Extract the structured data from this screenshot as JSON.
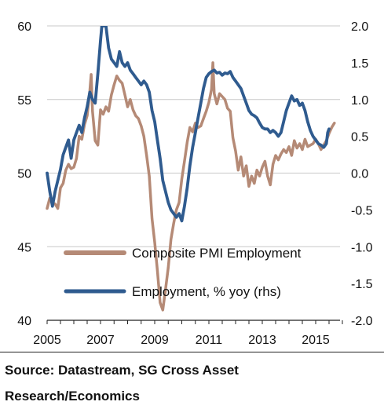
{
  "chart_data": {
    "type": "line",
    "title": "",
    "xlabel": "",
    "ylabel": "",
    "x_ticks": [
      "2005",
      "2007",
      "2009",
      "2011",
      "2013",
      "2015"
    ],
    "x_range": [
      2005.0,
      2016.0
    ],
    "y_left_ticks": [
      "40",
      "45",
      "50",
      "55",
      "60"
    ],
    "y_left_range": [
      40,
      60
    ],
    "y_right_ticks": [
      "-2.0",
      "-1.5",
      "-1.0",
      "-0.5",
      "0.0",
      "0.5",
      "1.0",
      "1.5",
      "2.0"
    ],
    "y_right_range": [
      -2.0,
      2.0
    ],
    "grid": "horizontal",
    "legend_position": "lower-center",
    "series": [
      {
        "name": "Composite PMI Employment",
        "axis": "left",
        "color": "#b58a76",
        "points": [
          [
            2005.0,
            47.6
          ],
          [
            2005.1,
            48.3
          ],
          [
            2005.2,
            48.0
          ],
          [
            2005.3,
            47.9
          ],
          [
            2005.4,
            47.6
          ],
          [
            2005.5,
            49.0
          ],
          [
            2005.6,
            49.3
          ],
          [
            2005.7,
            50.2
          ],
          [
            2005.8,
            50.6
          ],
          [
            2005.9,
            50.3
          ],
          [
            2006.0,
            50.4
          ],
          [
            2006.1,
            51.0
          ],
          [
            2006.2,
            52.5
          ],
          [
            2006.3,
            52.3
          ],
          [
            2006.4,
            53.3
          ],
          [
            2006.5,
            53.9
          ],
          [
            2006.6,
            55.6
          ],
          [
            2006.65,
            56.7
          ],
          [
            2006.7,
            54.2
          ],
          [
            2006.8,
            52.2
          ],
          [
            2006.9,
            51.9
          ],
          [
            2007.0,
            54.3
          ],
          [
            2007.1,
            54.0
          ],
          [
            2007.2,
            54.5
          ],
          [
            2007.3,
            54.2
          ],
          [
            2007.4,
            55.3
          ],
          [
            2007.5,
            56.0
          ],
          [
            2007.6,
            56.6
          ],
          [
            2007.7,
            56.3
          ],
          [
            2007.8,
            56.1
          ],
          [
            2007.9,
            55.3
          ],
          [
            2008.0,
            54.5
          ],
          [
            2008.1,
            55.0
          ],
          [
            2008.2,
            54.3
          ],
          [
            2008.3,
            53.9
          ],
          [
            2008.4,
            53.7
          ],
          [
            2008.5,
            53.2
          ],
          [
            2008.6,
            52.5
          ],
          [
            2008.7,
            51.2
          ],
          [
            2008.8,
            49.8
          ],
          [
            2008.9,
            46.9
          ],
          [
            2009.0,
            45.3
          ],
          [
            2009.1,
            43.4
          ],
          [
            2009.2,
            41.2
          ],
          [
            2009.3,
            40.7
          ],
          [
            2009.4,
            42.1
          ],
          [
            2009.5,
            43.6
          ],
          [
            2009.6,
            45.5
          ],
          [
            2009.7,
            46.6
          ],
          [
            2009.8,
            47.5
          ],
          [
            2009.9,
            48.0
          ],
          [
            2010.0,
            49.6
          ],
          [
            2010.1,
            50.8
          ],
          [
            2010.2,
            52.1
          ],
          [
            2010.3,
            53.1
          ],
          [
            2010.4,
            52.8
          ],
          [
            2010.5,
            53.4
          ],
          [
            2010.6,
            53.1
          ],
          [
            2010.7,
            53.2
          ],
          [
            2010.8,
            53.7
          ],
          [
            2010.9,
            54.2
          ],
          [
            2011.0,
            54.8
          ],
          [
            2011.1,
            55.7
          ],
          [
            2011.15,
            57.5
          ],
          [
            2011.2,
            55.4
          ],
          [
            2011.3,
            54.7
          ],
          [
            2011.4,
            55.4
          ],
          [
            2011.5,
            55.2
          ],
          [
            2011.6,
            55.0
          ],
          [
            2011.7,
            54.4
          ],
          [
            2011.8,
            54.2
          ],
          [
            2011.9,
            52.4
          ],
          [
            2012.0,
            51.5
          ],
          [
            2012.1,
            50.2
          ],
          [
            2012.2,
            51.1
          ],
          [
            2012.3,
            49.8
          ],
          [
            2012.4,
            50.5
          ],
          [
            2012.5,
            49.1
          ],
          [
            2012.6,
            49.8
          ],
          [
            2012.7,
            49.3
          ],
          [
            2012.8,
            50.2
          ],
          [
            2012.9,
            49.8
          ],
          [
            2013.0,
            50.4
          ],
          [
            2013.1,
            50.8
          ],
          [
            2013.2,
            49.8
          ],
          [
            2013.3,
            49.2
          ],
          [
            2013.4,
            50.6
          ],
          [
            2013.5,
            51.2
          ],
          [
            2013.6,
            50.9
          ],
          [
            2013.7,
            51.3
          ],
          [
            2013.8,
            51.6
          ],
          [
            2013.9,
            51.4
          ],
          [
            2014.0,
            51.8
          ],
          [
            2014.1,
            51.2
          ],
          [
            2014.2,
            52.2
          ],
          [
            2014.3,
            51.7
          ],
          [
            2014.4,
            52.0
          ],
          [
            2014.5,
            51.6
          ],
          [
            2014.6,
            52.3
          ],
          [
            2014.7,
            51.8
          ],
          [
            2014.8,
            51.9
          ],
          [
            2014.9,
            52.0
          ],
          [
            2015.0,
            52.3
          ],
          [
            2015.1,
            52.0
          ],
          [
            2015.2,
            51.6
          ],
          [
            2015.3,
            51.9
          ],
          [
            2015.4,
            52.2
          ],
          [
            2015.5,
            52.7
          ],
          [
            2015.6,
            53.1
          ],
          [
            2015.7,
            53.4
          ]
        ]
      },
      {
        "name": "Employment, % yoy (rhs)",
        "axis": "right",
        "color": "#2f5b8f",
        "points": [
          [
            2005.0,
            0.0
          ],
          [
            2005.1,
            -0.25
          ],
          [
            2005.2,
            -0.45
          ],
          [
            2005.3,
            -0.25
          ],
          [
            2005.4,
            -0.1
          ],
          [
            2005.5,
            0.05
          ],
          [
            2005.6,
            0.25
          ],
          [
            2005.7,
            0.35
          ],
          [
            2005.8,
            0.45
          ],
          [
            2005.9,
            0.2
          ],
          [
            2006.0,
            0.45
          ],
          [
            2006.1,
            0.55
          ],
          [
            2006.2,
            0.65
          ],
          [
            2006.3,
            0.55
          ],
          [
            2006.4,
            0.75
          ],
          [
            2006.5,
            0.9
          ],
          [
            2006.6,
            1.1
          ],
          [
            2006.7,
            1.0
          ],
          [
            2006.8,
            0.95
          ],
          [
            2006.9,
            1.35
          ],
          [
            2007.0,
            1.8
          ],
          [
            2007.05,
            2.0
          ],
          [
            2007.2,
            2.0
          ],
          [
            2007.3,
            1.7
          ],
          [
            2007.4,
            1.55
          ],
          [
            2007.5,
            1.5
          ],
          [
            2007.6,
            1.45
          ],
          [
            2007.7,
            1.65
          ],
          [
            2007.8,
            1.5
          ],
          [
            2007.9,
            1.45
          ],
          [
            2008.0,
            1.5
          ],
          [
            2008.1,
            1.4
          ],
          [
            2008.2,
            1.35
          ],
          [
            2008.3,
            1.3
          ],
          [
            2008.4,
            1.25
          ],
          [
            2008.5,
            1.2
          ],
          [
            2008.6,
            1.25
          ],
          [
            2008.7,
            1.2
          ],
          [
            2008.8,
            1.1
          ],
          [
            2008.9,
            0.85
          ],
          [
            2009.0,
            0.7
          ],
          [
            2009.1,
            0.45
          ],
          [
            2009.2,
            0.2
          ],
          [
            2009.3,
            -0.1
          ],
          [
            2009.4,
            -0.25
          ],
          [
            2009.5,
            -0.4
          ],
          [
            2009.6,
            -0.5
          ],
          [
            2009.7,
            -0.55
          ],
          [
            2009.8,
            -0.6
          ],
          [
            2009.9,
            -0.55
          ],
          [
            2010.0,
            -0.65
          ],
          [
            2010.1,
            -0.45
          ],
          [
            2010.2,
            -0.2
          ],
          [
            2010.3,
            0.1
          ],
          [
            2010.4,
            0.35
          ],
          [
            2010.5,
            0.55
          ],
          [
            2010.6,
            0.75
          ],
          [
            2010.7,
            0.95
          ],
          [
            2010.8,
            1.15
          ],
          [
            2010.9,
            1.3
          ],
          [
            2011.0,
            1.35
          ],
          [
            2011.1,
            1.38
          ],
          [
            2011.2,
            1.4
          ],
          [
            2011.3,
            1.36
          ],
          [
            2011.4,
            1.37
          ],
          [
            2011.5,
            1.33
          ],
          [
            2011.6,
            1.36
          ],
          [
            2011.7,
            1.35
          ],
          [
            2011.8,
            1.38
          ],
          [
            2011.9,
            1.3
          ],
          [
            2012.0,
            1.25
          ],
          [
            2012.1,
            1.2
          ],
          [
            2012.2,
            1.15
          ],
          [
            2012.3,
            1.05
          ],
          [
            2012.4,
            0.95
          ],
          [
            2012.5,
            0.85
          ],
          [
            2012.6,
            0.8
          ],
          [
            2012.7,
            0.78
          ],
          [
            2012.8,
            0.75
          ],
          [
            2012.9,
            0.68
          ],
          [
            2013.0,
            0.62
          ],
          [
            2013.1,
            0.6
          ],
          [
            2013.2,
            0.6
          ],
          [
            2013.3,
            0.55
          ],
          [
            2013.4,
            0.58
          ],
          [
            2013.5,
            0.55
          ],
          [
            2013.6,
            0.5
          ],
          [
            2013.7,
            0.55
          ],
          [
            2013.8,
            0.7
          ],
          [
            2013.9,
            0.85
          ],
          [
            2014.0,
            0.95
          ],
          [
            2014.1,
            1.05
          ],
          [
            2014.2,
            0.98
          ],
          [
            2014.3,
            1.0
          ],
          [
            2014.4,
            0.92
          ],
          [
            2014.5,
            0.95
          ],
          [
            2014.6,
            0.85
          ],
          [
            2014.7,
            0.7
          ],
          [
            2014.8,
            0.58
          ],
          [
            2014.9,
            0.5
          ],
          [
            2015.0,
            0.45
          ],
          [
            2015.1,
            0.4
          ],
          [
            2015.2,
            0.38
          ],
          [
            2015.3,
            0.35
          ],
          [
            2015.4,
            0.4
          ],
          [
            2015.45,
            0.55
          ],
          [
            2015.5,
            0.6
          ]
        ]
      }
    ]
  },
  "source": "Source: Datastream, SG Cross Asset Research/Economics"
}
